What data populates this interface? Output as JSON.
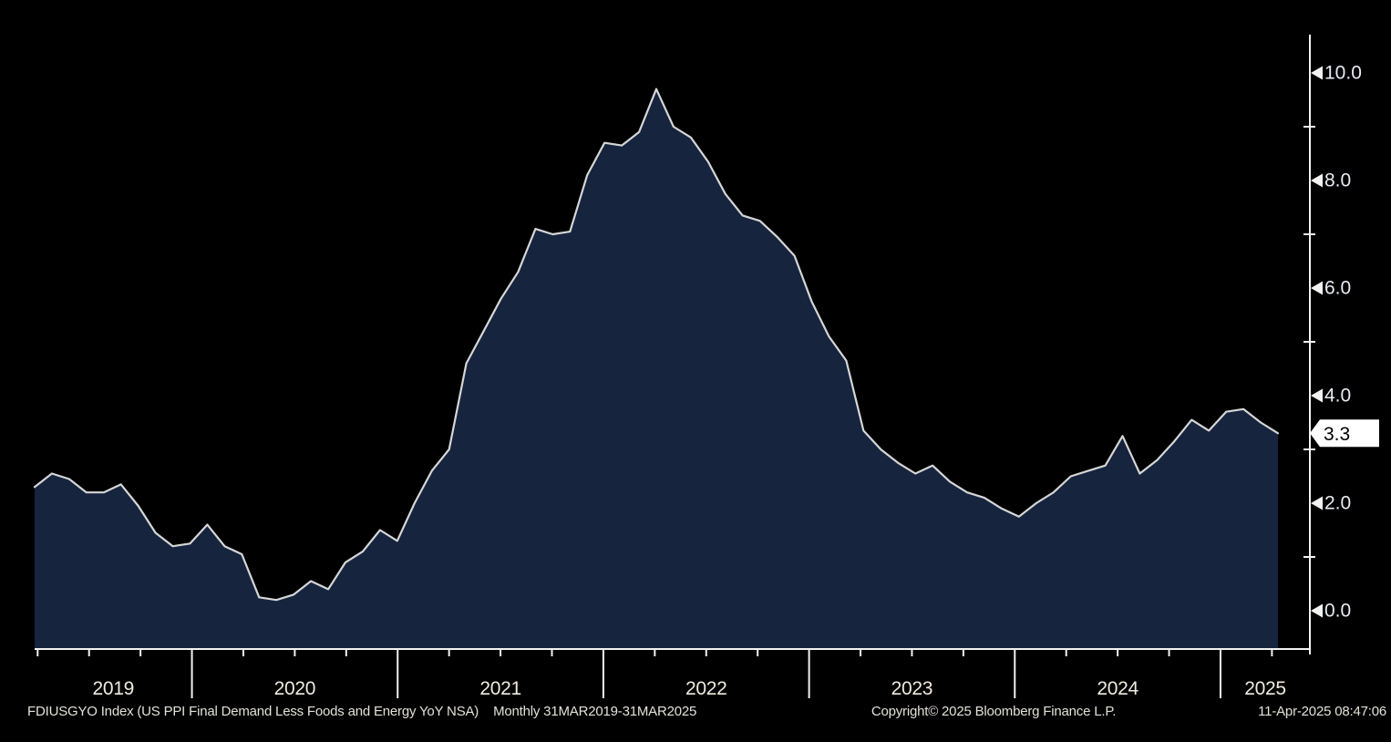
{
  "chart_data": {
    "type": "area",
    "title": "FDIUSGYO Index (US PPI Final Demand Less Foods and Energy YoY NSA)",
    "security": "FDIUSGYO Index",
    "description": "US PPI Final Demand Less Foods and Energy YoY NSA",
    "frequency": "Monthly",
    "start_date": "31MAR2019",
    "end_date": "31MAR2025",
    "x_start": "2019-03",
    "x_end": "2025-03",
    "values": [
      2.3,
      2.55,
      2.45,
      2.2,
      2.2,
      2.35,
      1.95,
      1.45,
      1.2,
      1.25,
      1.6,
      1.2,
      1.05,
      0.25,
      0.2,
      0.3,
      0.55,
      0.4,
      0.9,
      1.1,
      1.5,
      1.3,
      2.0,
      2.6,
      3.0,
      4.6,
      5.2,
      5.8,
      6.3,
      7.1,
      7.0,
      7.05,
      8.1,
      8.7,
      8.65,
      8.9,
      9.7,
      9.0,
      8.8,
      8.35,
      7.75,
      7.35,
      7.25,
      6.95,
      6.6,
      5.75,
      5.1,
      4.65,
      3.35,
      3.0,
      2.75,
      2.55,
      2.7,
      2.4,
      2.2,
      2.1,
      1.9,
      1.75,
      2.0,
      2.2,
      2.5,
      2.6,
      2.7,
      3.25,
      2.55,
      2.8,
      3.15,
      3.55,
      3.35,
      3.7,
      3.75,
      3.5,
      3.3
    ],
    "x_tick_years": [
      "2019",
      "2020",
      "2021",
      "2022",
      "2023",
      "2024",
      "2025"
    ],
    "y_major_ticks": [
      0,
      2,
      4,
      6,
      8,
      10
    ],
    "y_minor_ticks": [
      1,
      3,
      5,
      7,
      9
    ],
    "ylim": [
      -0.7,
      10.7
    ],
    "last_value": "3.3",
    "grid": false,
    "legend_position": "none",
    "xlabel": "",
    "ylabel": ""
  },
  "footer": {
    "security_line": "FDIUSGYO Index (US PPI Final Demand Less Foods and Energy YoY NSA)",
    "periodicity_line": "Monthly 31MAR2019-31MAR2025",
    "copyright": "Copyright© 2025 Bloomberg Finance L.P.",
    "timestamp": "11-Apr-2025 08:47:06"
  },
  "colors": {
    "background": "#000000",
    "area_fill": "#16243e",
    "line": "#d6d6d6",
    "axis": "#f2f2f2",
    "y_tick_label": "#e7ebf2",
    "x_tick_label": "#f0ebdf",
    "footer_text": "#e3e0d8",
    "badge_bg": "#ffffff",
    "badge_text": "#000000"
  }
}
